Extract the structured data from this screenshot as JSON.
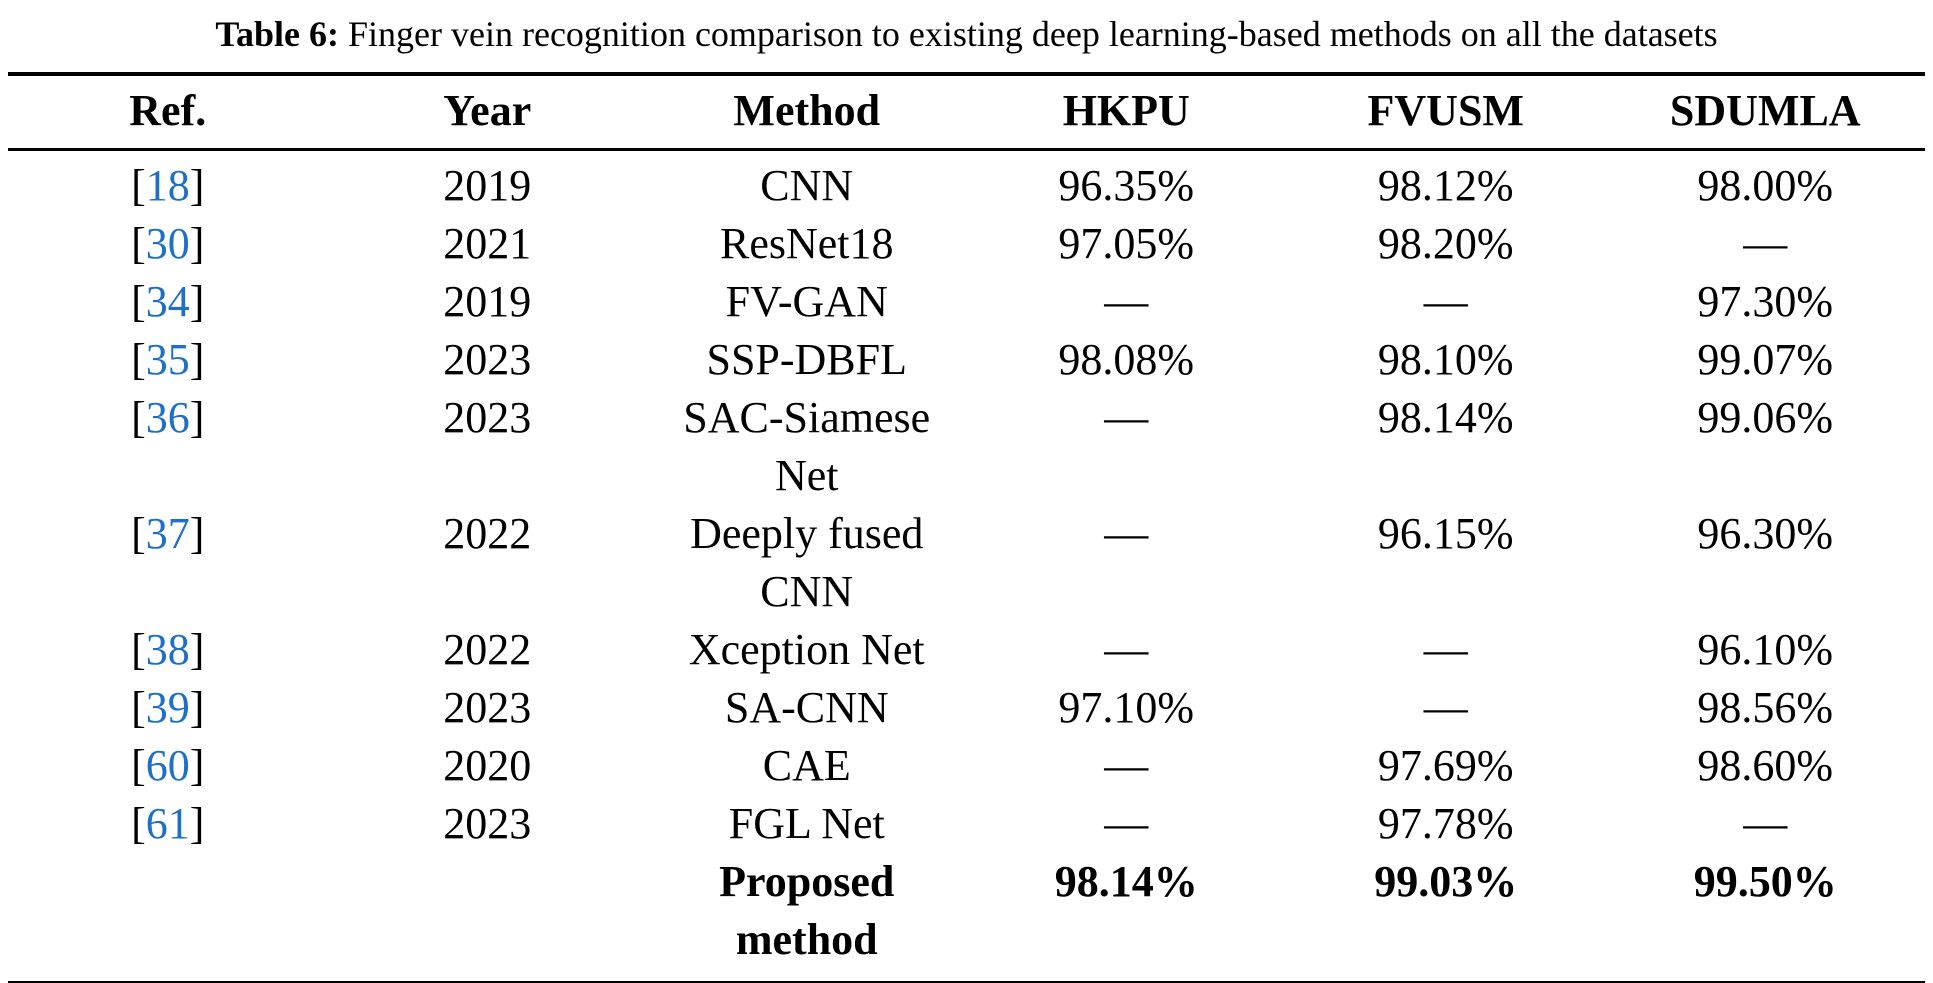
{
  "colors": {
    "background": "#FFFFFF",
    "text": "#000000",
    "rule": "#000000",
    "reference_link_blue": "#1E6FC8"
  },
  "caption": {
    "label": "Table 6:",
    "text": "Finger vein recognition comparison to existing deep learning-based methods on all the datasets"
  },
  "table": {
    "columns": [
      "Ref.",
      "Year",
      "Method",
      "HKPU",
      "FVUSM",
      "SDUMLA"
    ],
    "missing_value_symbol": "—",
    "rows": [
      {
        "ref": "18",
        "year": "2019",
        "method": "CNN",
        "hkpu": "96.35%",
        "fvusm": "98.12%",
        "sdumla": "98.00%",
        "bold": false
      },
      {
        "ref": "30",
        "year": "2021",
        "method": "ResNet18",
        "hkpu": "97.05%",
        "fvusm": "98.20%",
        "sdumla": "—",
        "bold": false
      },
      {
        "ref": "34",
        "year": "2019",
        "method": "FV-GAN",
        "hkpu": "—",
        "fvusm": "—",
        "sdumla": "97.30%",
        "bold": false
      },
      {
        "ref": "35",
        "year": "2023",
        "method": "SSP-DBFL",
        "hkpu": "98.08%",
        "fvusm": "98.10%",
        "sdumla": "99.07%",
        "bold": false
      },
      {
        "ref": "36",
        "year": "2023",
        "method": "SAC-Siamese Net",
        "hkpu": "—",
        "fvusm": "98.14%",
        "sdumla": "99.06%",
        "bold": false
      },
      {
        "ref": "37",
        "year": "2022",
        "method": "Deeply fused CNN",
        "hkpu": "—",
        "fvusm": "96.15%",
        "sdumla": "96.30%",
        "bold": false
      },
      {
        "ref": "38",
        "year": "2022",
        "method": "Xception Net",
        "hkpu": "—",
        "fvusm": "—",
        "sdumla": "96.10%",
        "bold": false
      },
      {
        "ref": "39",
        "year": "2023",
        "method": "SA-CNN",
        "hkpu": "97.10%",
        "fvusm": "—",
        "sdumla": "98.56%",
        "bold": false
      },
      {
        "ref": "60",
        "year": "2020",
        "method": "CAE",
        "hkpu": "—",
        "fvusm": "97.69%",
        "sdumla": "98.60%",
        "bold": false
      },
      {
        "ref": "61",
        "year": "2023",
        "method": "FGL Net",
        "hkpu": "—",
        "fvusm": "97.78%",
        "sdumla": "—",
        "bold": false
      },
      {
        "ref": "",
        "year": "",
        "method": "Proposed method",
        "hkpu": "98.14%",
        "fvusm": "99.03%",
        "sdumla": "99.50%",
        "bold": true
      }
    ]
  }
}
